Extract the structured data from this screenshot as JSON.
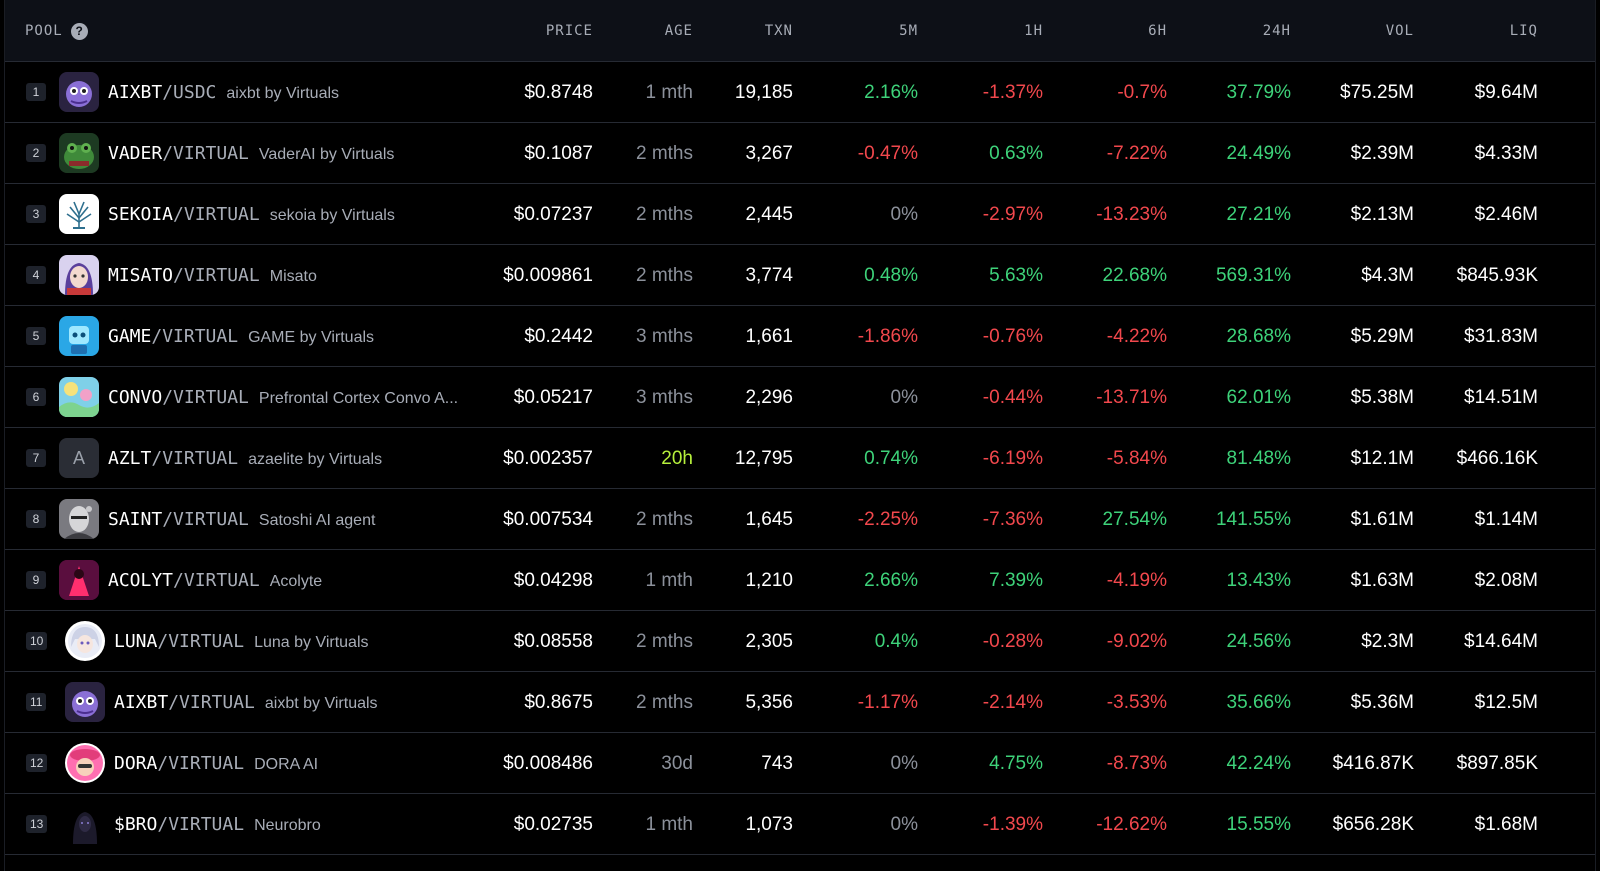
{
  "header": {
    "pool": "POOL",
    "price": "PRICE",
    "age": "AGE",
    "txn": "TXN",
    "m5": "5M",
    "h1": "1H",
    "h6": "6H",
    "h24": "24H",
    "vol": "VOL",
    "liq": "LIQ"
  },
  "colors": {
    "positive": "#3ed37a",
    "negative": "#f2484d",
    "neutral": "#8c919b",
    "new_age": "#b6f03c",
    "background": "#000000",
    "header_bg": "#0d1017"
  },
  "rows": [
    {
      "rank": "1",
      "base": "AIXBT",
      "quote": "/USDC",
      "name": "aixbt by Virtuals",
      "avatar": "purple-creature-avatar",
      "price": "$0.8748",
      "age": "1 mth",
      "txn": "19,185",
      "m5": "2.16%",
      "h1": "-1.37%",
      "h6": "-0.7%",
      "h24": "37.79%",
      "vol": "$75.25M",
      "liq": "$9.64M"
    },
    {
      "rank": "2",
      "base": "VADER",
      "quote": "/VIRTUAL",
      "name": "VaderAI by Virtuals",
      "avatar": "green-frog-avatar",
      "price": "$0.1087",
      "age": "2 mths",
      "txn": "3,267",
      "m5": "-0.47%",
      "h1": "0.63%",
      "h6": "-7.22%",
      "h24": "24.49%",
      "vol": "$2.39M",
      "liq": "$4.33M"
    },
    {
      "rank": "3",
      "base": "SEKOIA",
      "quote": "/VIRTUAL",
      "name": "sekoia by Virtuals",
      "avatar": "tree-logo-avatar",
      "price": "$0.07237",
      "age": "2 mths",
      "txn": "2,445",
      "m5": "0%",
      "h1": "-2.97%",
      "h6": "-13.23%",
      "h24": "27.21%",
      "vol": "$2.13M",
      "liq": "$2.46M"
    },
    {
      "rank": "4",
      "base": "MISATO",
      "quote": "/VIRTUAL",
      "name": "Misato",
      "avatar": "anime-girl-avatar",
      "price": "$0.009861",
      "age": "2 mths",
      "txn": "3,774",
      "m5": "0.48%",
      "h1": "5.63%",
      "h6": "22.68%",
      "h24": "569.31%",
      "vol": "$4.3M",
      "liq": "$845.93K"
    },
    {
      "rank": "5",
      "base": "GAME",
      "quote": "/VIRTUAL",
      "name": "GAME by Virtuals",
      "avatar": "blue-robot-avatar",
      "price": "$0.2442",
      "age": "3 mths",
      "txn": "1,661",
      "m5": "-1.86%",
      "h1": "-0.76%",
      "h6": "-4.22%",
      "h24": "28.68%",
      "vol": "$5.29M",
      "liq": "$31.83M"
    },
    {
      "rank": "6",
      "base": "CONVO",
      "quote": "/VIRTUAL",
      "name": "Prefrontal Cortex Convo A...",
      "avatar": "colorful-sky-avatar",
      "price": "$0.05217",
      "age": "3 mths",
      "txn": "2,296",
      "m5": "0%",
      "h1": "-0.44%",
      "h6": "-13.71%",
      "h24": "62.01%",
      "vol": "$5.38M",
      "liq": "$14.51M"
    },
    {
      "rank": "7",
      "base": "AZLT",
      "quote": "/VIRTUAL",
      "name": "azaelite by Virtuals",
      "avatar": "letter-a-avatar",
      "letter": "A",
      "price": "$0.002357",
      "age": "20h",
      "txn": "12,795",
      "m5": "0.74%",
      "h1": "-6.19%",
      "h6": "-5.84%",
      "h24": "81.48%",
      "vol": "$12.1M",
      "liq": "$466.16K"
    },
    {
      "rank": "8",
      "base": "SAINT",
      "quote": "/VIRTUAL",
      "name": "Satoshi AI agent",
      "avatar": "cyborg-avatar",
      "price": "$0.007534",
      "age": "2 mths",
      "txn": "1,645",
      "m5": "-2.25%",
      "h1": "-7.36%",
      "h6": "27.54%",
      "h24": "141.55%",
      "vol": "$1.61M",
      "liq": "$1.14M"
    },
    {
      "rank": "9",
      "base": "ACOLYT",
      "quote": "/VIRTUAL",
      "name": "Acolyte",
      "avatar": "neon-figure-avatar",
      "price": "$0.04298",
      "age": "1 mth",
      "txn": "1,210",
      "m5": "2.66%",
      "h1": "7.39%",
      "h6": "-4.19%",
      "h24": "13.43%",
      "vol": "$1.63M",
      "liq": "$2.08M"
    },
    {
      "rank": "10",
      "base": "LUNA",
      "quote": "/VIRTUAL",
      "name": "Luna by Virtuals",
      "avatar": "white-hair-girl-avatar",
      "price": "$0.08558",
      "age": "2 mths",
      "txn": "2,305",
      "m5": "0.4%",
      "h1": "-0.28%",
      "h6": "-9.02%",
      "h24": "24.56%",
      "vol": "$2.3M",
      "liq": "$14.64M"
    },
    {
      "rank": "11",
      "base": "AIXBT",
      "quote": "/VIRTUAL",
      "name": "aixbt by Virtuals",
      "avatar": "purple-creature-avatar",
      "price": "$0.8675",
      "age": "2 mths",
      "txn": "5,356",
      "m5": "-1.17%",
      "h1": "-2.14%",
      "h6": "-3.53%",
      "h24": "35.66%",
      "vol": "$5.36M",
      "liq": "$12.5M"
    },
    {
      "rank": "12",
      "base": "DORA",
      "quote": "/VIRTUAL",
      "name": "DORA AI",
      "avatar": "pink-hat-girl-avatar",
      "price": "$0.008486",
      "age": "30d",
      "txn": "743",
      "m5": "0%",
      "h1": "4.75%",
      "h6": "-8.73%",
      "h24": "42.24%",
      "vol": "$416.87K",
      "liq": "$897.85K"
    },
    {
      "rank": "13",
      "base": "$BRO",
      "quote": "/VIRTUAL",
      "name": "Neurobro",
      "avatar": "dark-hooded-avatar",
      "price": "$0.02735",
      "age": "1 mth",
      "txn": "1,073",
      "m5": "0%",
      "h1": "-1.39%",
      "h6": "-12.62%",
      "h24": "15.55%",
      "vol": "$656.28K",
      "liq": "$1.68M"
    }
  ]
}
